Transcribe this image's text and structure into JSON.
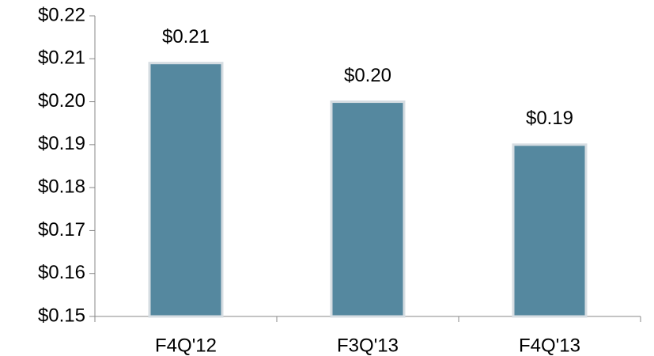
{
  "chart_data": {
    "type": "bar",
    "categories": [
      "F4Q'12",
      "F3Q'13",
      "F4Q'13"
    ],
    "values": [
      0.209,
      0.2,
      0.19
    ],
    "value_labels": [
      "$0.21",
      "$0.20",
      "$0.19"
    ],
    "color": "#55889f",
    "ylim": [
      0.15,
      0.22
    ],
    "yticks": [
      {
        "value": 0.15,
        "label": "$0.15"
      },
      {
        "value": 0.16,
        "label": "$0.16"
      },
      {
        "value": 0.17,
        "label": "$0.17"
      },
      {
        "value": 0.18,
        "label": "$0.18"
      },
      {
        "value": 0.19,
        "label": "$0.19"
      },
      {
        "value": 0.2,
        "label": "$0.20"
      },
      {
        "value": 0.21,
        "label": "$0.21"
      },
      {
        "value": 0.22,
        "label": "$0.22"
      }
    ],
    "grid": false
  }
}
